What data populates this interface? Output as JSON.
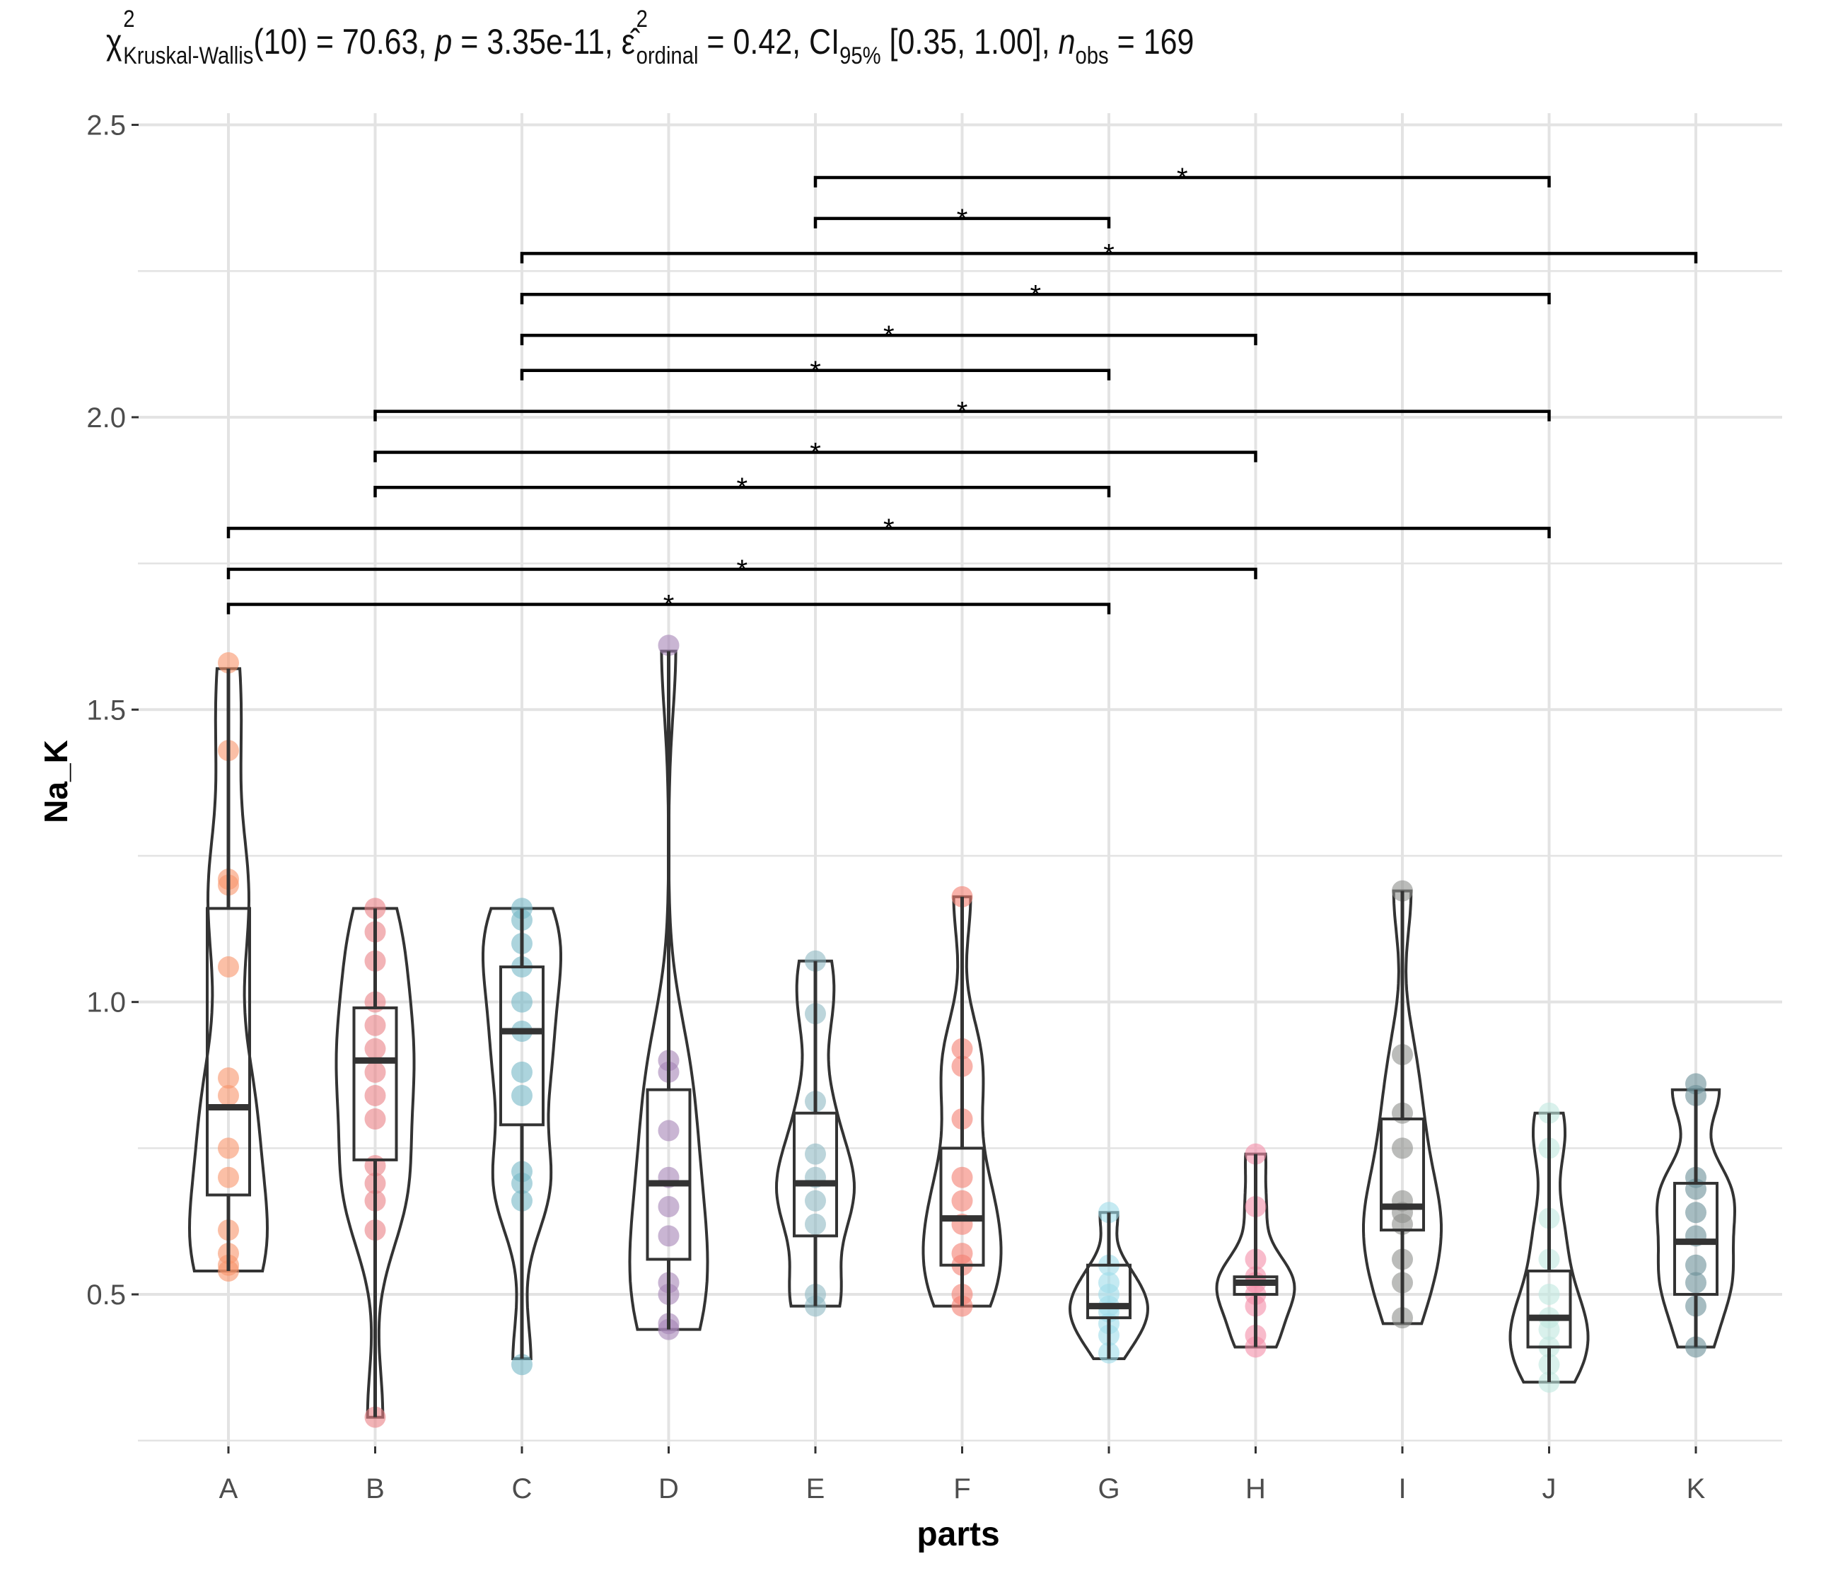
{
  "stat_subtitle": {
    "chi_symbol": "χ",
    "chi_sup": "2",
    "chi_sub": "Kruskal-Wallis",
    "df_part": "(10) = 70.63, ",
    "p_symbol": "p",
    "p_part": " = 3.35e-11, ",
    "eps_symbol": "ε̂",
    "eps_sup": "2",
    "eps_sub": "ordinal",
    "eps_part": " = 0.42, CI",
    "ci_sub": "95%",
    "ci_part": " [0.35, 1.00], ",
    "n_symbol": "n",
    "n_sub": "obs",
    "n_part": " = 169"
  },
  "chart_data": {
    "type": "violin-box-scatter",
    "xlabel": "parts",
    "ylabel": "Na_K",
    "ylim": [
      0.24,
      2.52
    ],
    "yticks": [
      0.5,
      1.0,
      1.5,
      2.0,
      2.5
    ],
    "ytick_labels": [
      "0.5",
      "1.0",
      "1.5",
      "2.0",
      "2.5"
    ],
    "grid": true,
    "categories": [
      "A",
      "B",
      "C",
      "D",
      "E",
      "F",
      "G",
      "H",
      "I",
      "J",
      "K"
    ],
    "colors": [
      "#F8956B",
      "#E98086",
      "#74B7C6",
      "#A583B5",
      "#8FB9C3",
      "#F47E72",
      "#9EDCE9",
      "#F48EA8",
      "#8E908C",
      "#BFE8E0",
      "#6B8F98"
    ],
    "boxes": [
      {
        "group": "A",
        "q1": 0.67,
        "median": 0.82,
        "q3": 1.16,
        "whisker_low": 0.54,
        "whisker_high": 1.57
      },
      {
        "group": "B",
        "q1": 0.73,
        "median": 0.9,
        "q3": 0.99,
        "whisker_low": 0.29,
        "whisker_high": 1.16
      },
      {
        "group": "C",
        "q1": 0.79,
        "median": 0.95,
        "q3": 1.06,
        "whisker_low": 0.39,
        "whisker_high": 1.16
      },
      {
        "group": "D",
        "q1": 0.56,
        "median": 0.69,
        "q3": 0.85,
        "whisker_low": 0.44,
        "whisker_high": 1.6
      },
      {
        "group": "E",
        "q1": 0.6,
        "median": 0.69,
        "q3": 0.81,
        "whisker_low": 0.48,
        "whisker_high": 1.07
      },
      {
        "group": "F",
        "q1": 0.55,
        "median": 0.63,
        "q3": 0.75,
        "whisker_low": 0.48,
        "whisker_high": 1.18
      },
      {
        "group": "G",
        "q1": 0.46,
        "median": 0.48,
        "q3": 0.55,
        "whisker_low": 0.39,
        "whisker_high": 0.64
      },
      {
        "group": "H",
        "q1": 0.5,
        "median": 0.52,
        "q3": 0.53,
        "whisker_low": 0.41,
        "whisker_high": 0.74
      },
      {
        "group": "I",
        "q1": 0.61,
        "median": 0.65,
        "q3": 0.8,
        "whisker_low": 0.45,
        "whisker_high": 1.19
      },
      {
        "group": "J",
        "q1": 0.41,
        "median": 0.46,
        "q3": 0.54,
        "whisker_low": 0.35,
        "whisker_high": 0.81
      },
      {
        "group": "K",
        "q1": 0.5,
        "median": 0.59,
        "q3": 0.69,
        "whisker_low": 0.41,
        "whisker_high": 0.85
      }
    ],
    "points": {
      "A": [
        1.58,
        1.43,
        1.21,
        1.2,
        1.06,
        0.87,
        0.84,
        0.75,
        0.7,
        0.61,
        0.57,
        0.55,
        0.54
      ],
      "B": [
        1.16,
        1.12,
        1.07,
        1.0,
        0.96,
        0.92,
        0.88,
        0.84,
        0.8,
        0.72,
        0.69,
        0.66,
        0.61,
        0.29
      ],
      "C": [
        1.16,
        1.14,
        1.1,
        1.06,
        1.0,
        0.95,
        0.88,
        0.84,
        0.71,
        0.69,
        0.66,
        0.38
      ],
      "D": [
        1.61,
        0.9,
        0.88,
        0.78,
        0.7,
        0.65,
        0.6,
        0.52,
        0.5,
        0.45,
        0.44
      ],
      "E": [
        1.07,
        0.98,
        0.83,
        0.74,
        0.7,
        0.66,
        0.62,
        0.5,
        0.48
      ],
      "F": [
        1.18,
        0.92,
        0.89,
        0.8,
        0.7,
        0.66,
        0.62,
        0.57,
        0.55,
        0.5,
        0.48
      ],
      "G": [
        0.64,
        0.55,
        0.52,
        0.5,
        0.48,
        0.47,
        0.45,
        0.43,
        0.4
      ],
      "H": [
        0.74,
        0.65,
        0.56,
        0.53,
        0.52,
        0.5,
        0.48,
        0.43,
        0.41
      ],
      "I": [
        1.19,
        0.91,
        0.81,
        0.75,
        0.66,
        0.64,
        0.62,
        0.56,
        0.52,
        0.46
      ],
      "J": [
        0.81,
        0.75,
        0.63,
        0.56,
        0.5,
        0.46,
        0.44,
        0.41,
        0.38,
        0.35
      ],
      "K": [
        0.86,
        0.84,
        0.7,
        0.68,
        0.64,
        0.6,
        0.55,
        0.52,
        0.48,
        0.41
      ]
    },
    "comparisons": [
      {
        "from": "E",
        "to": "J",
        "y": 2.41,
        "label": "*"
      },
      {
        "from": "E",
        "to": "G",
        "y": 2.34,
        "label": "*"
      },
      {
        "from": "C",
        "to": "K",
        "y": 2.28,
        "label": "*"
      },
      {
        "from": "C",
        "to": "J",
        "y": 2.21,
        "label": "*"
      },
      {
        "from": "C",
        "to": "H",
        "y": 2.14,
        "label": "*"
      },
      {
        "from": "C",
        "to": "G",
        "y": 2.08,
        "label": "*"
      },
      {
        "from": "B",
        "to": "J",
        "y": 2.01,
        "label": "*"
      },
      {
        "from": "B",
        "to": "H",
        "y": 1.94,
        "label": "*"
      },
      {
        "from": "B",
        "to": "G",
        "y": 1.88,
        "label": "*"
      },
      {
        "from": "A",
        "to": "J",
        "y": 1.81,
        "label": "*"
      },
      {
        "from": "A",
        "to": "H",
        "y": 1.74,
        "label": "*"
      },
      {
        "from": "A",
        "to": "G",
        "y": 1.68,
        "label": "*"
      }
    ]
  }
}
